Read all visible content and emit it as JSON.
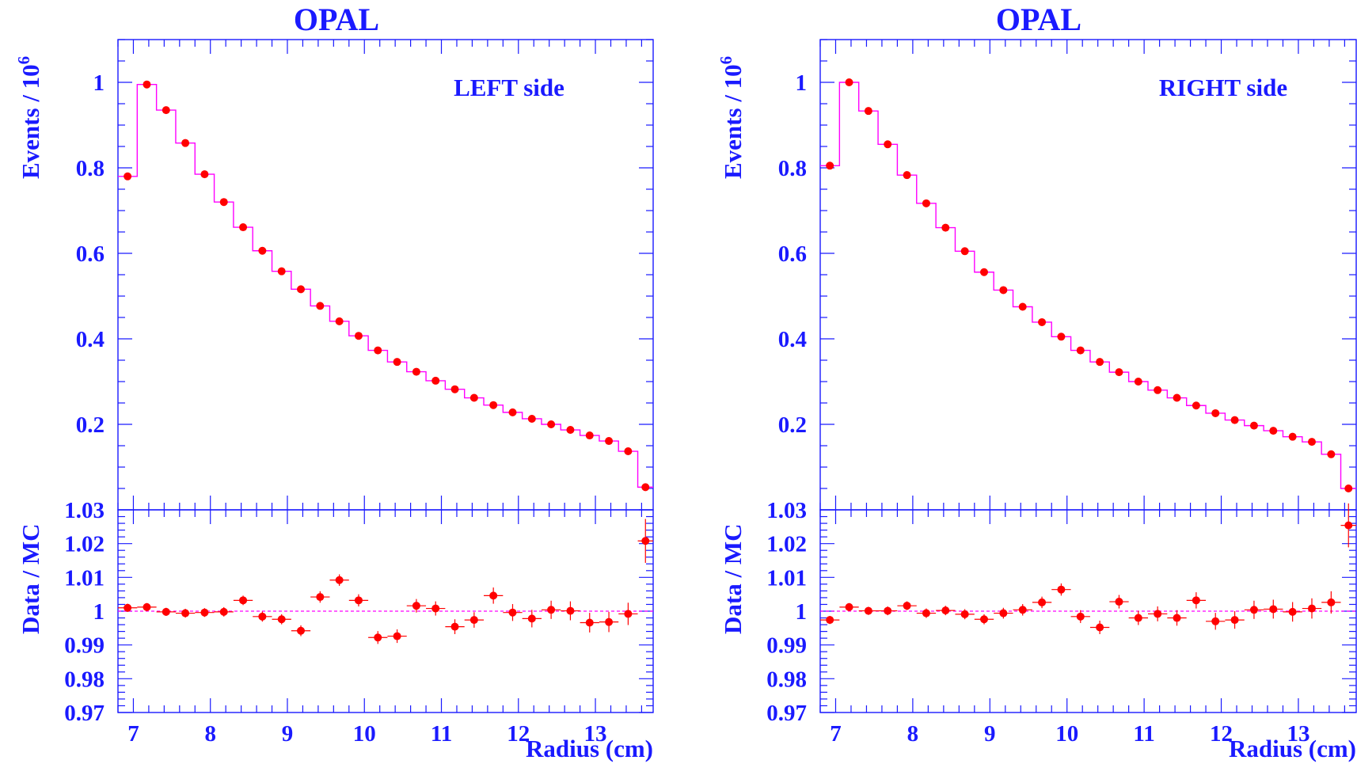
{
  "chart_data": [
    {
      "type": "line",
      "title": "OPAL",
      "annotation": "LEFT side",
      "xlabel": "Radius (cm)",
      "ylabel_top": "Events / 10",
      "ylabel_top_sup": "6",
      "ylabel_bottom": "Data / MC",
      "xlim": [
        6.8,
        13.75
      ],
      "ylim_top": [
        0.0,
        1.1
      ],
      "ylim_bottom": [
        0.97,
        1.03
      ],
      "x_ticks": [
        "7",
        "8",
        "9",
        "10",
        "11",
        "12",
        "13"
      ],
      "y_ticks_top": [
        "0.2",
        "0.4",
        "0.6",
        "0.8",
        "1"
      ],
      "y_ticks_bottom": [
        "0.97",
        "0.98",
        "0.99",
        "1",
        "1.01",
        "1.02",
        "1.03"
      ],
      "bin_edges": [
        6.8,
        7.05,
        7.3,
        7.55,
        7.8,
        8.05,
        8.3,
        8.55,
        8.8,
        9.05,
        9.3,
        9.55,
        9.8,
        10.05,
        10.3,
        10.55,
        10.8,
        11.05,
        11.3,
        11.55,
        11.8,
        12.05,
        12.3,
        12.55,
        12.8,
        13.05,
        13.3,
        13.55,
        13.75
      ],
      "mc": [
        0.78,
        0.995,
        0.935,
        0.858,
        0.785,
        0.72,
        0.661,
        0.606,
        0.558,
        0.516,
        0.477,
        0.441,
        0.407,
        0.373,
        0.346,
        0.323,
        0.302,
        0.282,
        0.262,
        0.245,
        0.228,
        0.213,
        0.2,
        0.187,
        0.174,
        0.161,
        0.137,
        0.053
      ],
      "data": [
        0.78,
        0.995,
        0.935,
        0.858,
        0.785,
        0.72,
        0.661,
        0.606,
        0.558,
        0.516,
        0.477,
        0.441,
        0.407,
        0.373,
        0.346,
        0.323,
        0.302,
        0.282,
        0.262,
        0.245,
        0.228,
        0.213,
        0.2,
        0.187,
        0.174,
        0.161,
        0.137,
        0.053
      ],
      "ratio": [
        1.001,
        1.0012,
        0.9998,
        0.9994,
        0.9996,
        0.9998,
        1.0032,
        0.9984,
        0.9976,
        0.9942,
        1.0042,
        1.0092,
        1.0032,
        0.9922,
        0.9926,
        1.0016,
        1.0008,
        0.9954,
        0.9974,
        1.0046,
        0.9996,
        0.9978,
        1.0004,
        1.0001,
        0.9966,
        0.9968,
        0.9992,
        1.0208
      ],
      "ratio_err": [
        0.0012,
        0.0012,
        0.0012,
        0.0013,
        0.0013,
        0.0014,
        0.0014,
        0.0015,
        0.0015,
        0.0016,
        0.0017,
        0.0017,
        0.0018,
        0.0019,
        0.002,
        0.002,
        0.0021,
        0.0022,
        0.0023,
        0.0024,
        0.0025,
        0.0026,
        0.0027,
        0.0028,
        0.0029,
        0.003,
        0.0033,
        0.0065
      ]
    },
    {
      "type": "line",
      "title": "OPAL",
      "annotation": "RIGHT side",
      "xlabel": "Radius (cm)",
      "ylabel_top": "Events / 10",
      "ylabel_top_sup": "6",
      "ylabel_bottom": "Data / MC",
      "xlim": [
        6.8,
        13.75
      ],
      "ylim_top": [
        0.0,
        1.1
      ],
      "ylim_bottom": [
        0.97,
        1.03
      ],
      "x_ticks": [
        "7",
        "8",
        "9",
        "10",
        "11",
        "12",
        "13"
      ],
      "y_ticks_top": [
        "0.2",
        "0.4",
        "0.6",
        "0.8",
        "1"
      ],
      "y_ticks_bottom": [
        "0.97",
        "0.98",
        "0.99",
        "1",
        "1.01",
        "1.02",
        "1.03"
      ],
      "bin_edges": [
        6.8,
        7.05,
        7.3,
        7.55,
        7.8,
        8.05,
        8.3,
        8.55,
        8.8,
        9.05,
        9.3,
        9.55,
        9.8,
        10.05,
        10.3,
        10.55,
        10.8,
        11.05,
        11.3,
        11.55,
        11.8,
        12.05,
        12.3,
        12.55,
        12.8,
        13.05,
        13.3,
        13.55,
        13.75
      ],
      "mc": [
        0.805,
        1.0,
        0.933,
        0.855,
        0.783,
        0.717,
        0.66,
        0.605,
        0.556,
        0.514,
        0.475,
        0.439,
        0.405,
        0.373,
        0.346,
        0.322,
        0.3,
        0.28,
        0.262,
        0.244,
        0.226,
        0.21,
        0.197,
        0.185,
        0.171,
        0.159,
        0.13,
        0.05
      ],
      "data": [
        0.805,
        1.0,
        0.933,
        0.855,
        0.783,
        0.717,
        0.66,
        0.605,
        0.556,
        0.514,
        0.475,
        0.439,
        0.405,
        0.373,
        0.346,
        0.322,
        0.3,
        0.28,
        0.262,
        0.244,
        0.226,
        0.21,
        0.197,
        0.185,
        0.171,
        0.159,
        0.13,
        0.05
      ],
      "ratio": [
        0.9974,
        1.0012,
        1.0001,
        1.0001,
        1.0016,
        0.9994,
        1.0002,
        0.9991,
        0.9976,
        0.9994,
        1.0004,
        1.0026,
        1.0064,
        0.9984,
        0.9952,
        1.0028,
        0.998,
        0.9992,
        0.998,
        1.0032,
        0.997,
        0.9974,
        1.0004,
        1.0006,
        0.9998,
        1.0008,
        1.0026,
        1.0254
      ],
      "ratio_err": [
        0.0012,
        0.0012,
        0.0012,
        0.0013,
        0.0013,
        0.0014,
        0.0014,
        0.0015,
        0.0015,
        0.0016,
        0.0017,
        0.0017,
        0.0018,
        0.0019,
        0.002,
        0.002,
        0.0021,
        0.0022,
        0.0023,
        0.0024,
        0.0025,
        0.0026,
        0.0027,
        0.0028,
        0.0029,
        0.003,
        0.0033,
        0.0065
      ]
    }
  ]
}
